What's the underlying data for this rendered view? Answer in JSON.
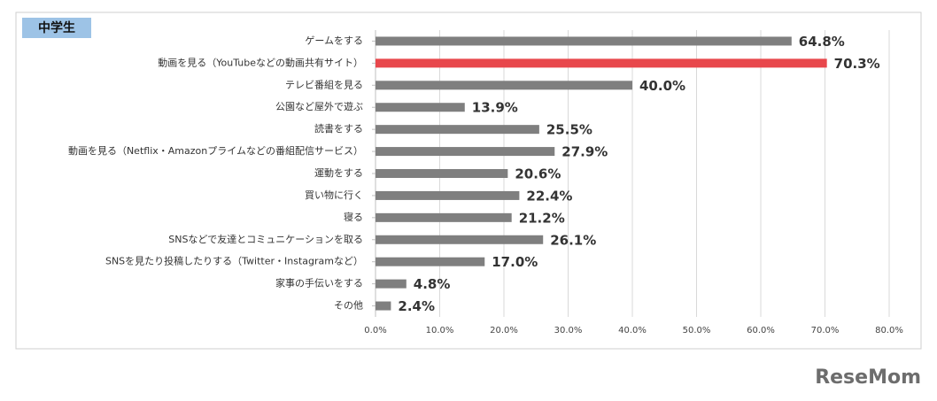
{
  "chart_data": {
    "type": "bar",
    "orientation": "horizontal",
    "title": "中学生",
    "categories": [
      "ゲームをする",
      "動画を見る（YouTubeなどの動画共有サイト）",
      "テレビ番組を見る",
      "公園など屋外で遊ぶ",
      "読書をする",
      "動画を見る（Netflix・Amazonプライムなどの番組配信サービス）",
      "運動をする",
      "買い物に行く",
      "寝る",
      "SNSなどで友達とコミュニケーションを取る",
      "SNSを見たり投稿したりする（Twitter・Instagramなど）",
      "家事の手伝いをする",
      "その他"
    ],
    "values": [
      64.8,
      70.3,
      40.0,
      13.9,
      25.5,
      27.9,
      20.6,
      22.4,
      21.2,
      26.1,
      17.0,
      4.8,
      2.4
    ],
    "value_labels": [
      "64.8%",
      "70.3%",
      "40.0%",
      "13.9%",
      "25.5%",
      "27.9%",
      "20.6%",
      "22.4%",
      "21.2%",
      "26.1%",
      "17.0%",
      "4.8%",
      "2.4%"
    ],
    "colors": [
      "#7f7f7f",
      "#e8474c",
      "#7f7f7f",
      "#7f7f7f",
      "#7f7f7f",
      "#7f7f7f",
      "#7f7f7f",
      "#7f7f7f",
      "#7f7f7f",
      "#7f7f7f",
      "#7f7f7f",
      "#7f7f7f",
      "#7f7f7f"
    ],
    "xlim": [
      0,
      80
    ],
    "xticks": [
      {
        "value": 0,
        "label": "0.0%"
      },
      {
        "value": 10,
        "label": "10.0%"
      },
      {
        "value": 20,
        "label": "20.0%"
      },
      {
        "value": 30,
        "label": "30.0%"
      },
      {
        "value": 40,
        "label": "40.0%"
      },
      {
        "value": 50,
        "label": "50.0%"
      },
      {
        "value": 60,
        "label": "60.0%"
      },
      {
        "value": 70,
        "label": "70.0%"
      },
      {
        "value": 80,
        "label": "80.0%"
      }
    ],
    "grid": true
  },
  "watermark": "ReseMom"
}
